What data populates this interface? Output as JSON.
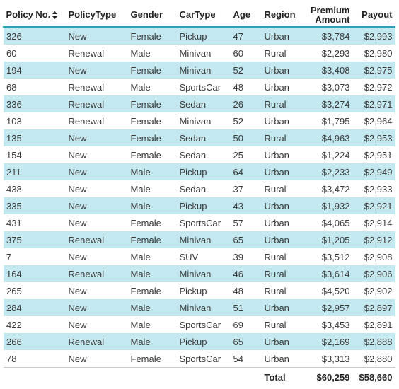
{
  "table": {
    "columns": [
      {
        "key": "policy_no",
        "label": "Policy No.",
        "numeric": false,
        "sortable": true
      },
      {
        "key": "policy_type",
        "label": "PolicyType",
        "numeric": false
      },
      {
        "key": "gender",
        "label": "Gender",
        "numeric": false
      },
      {
        "key": "car_type",
        "label": "CarType",
        "numeric": false
      },
      {
        "key": "age",
        "label": "Age",
        "numeric": false
      },
      {
        "key": "region",
        "label": "Region",
        "numeric": false
      },
      {
        "key": "premium_amount",
        "label_line1": "Premium",
        "label_line2": "Amount",
        "numeric": true
      },
      {
        "key": "payout",
        "label": "Payout",
        "numeric": true
      }
    ],
    "rows": [
      [
        "326",
        "New",
        "Female",
        "Pickup",
        "47",
        "Urban",
        "$3,784",
        "$2,993"
      ],
      [
        "60",
        "Renewal",
        "Male",
        "Minivan",
        "60",
        "Rural",
        "$2,293",
        "$2,980"
      ],
      [
        "194",
        "New",
        "Female",
        "Minivan",
        "52",
        "Urban",
        "$3,408",
        "$2,975"
      ],
      [
        "68",
        "Renewal",
        "Male",
        "SportsCar",
        "48",
        "Urban",
        "$3,073",
        "$2,972"
      ],
      [
        "336",
        "Renewal",
        "Female",
        "Sedan",
        "26",
        "Rural",
        "$3,274",
        "$2,971"
      ],
      [
        "103",
        "Renewal",
        "Female",
        "Minivan",
        "52",
        "Urban",
        "$1,795",
        "$2,964"
      ],
      [
        "135",
        "New",
        "Female",
        "Sedan",
        "50",
        "Rural",
        "$4,963",
        "$2,953"
      ],
      [
        "154",
        "New",
        "Female",
        "Sedan",
        "25",
        "Urban",
        "$1,224",
        "$2,951"
      ],
      [
        "211",
        "New",
        "Male",
        "Pickup",
        "64",
        "Urban",
        "$2,233",
        "$2,949"
      ],
      [
        "438",
        "New",
        "Male",
        "Sedan",
        "37",
        "Rural",
        "$3,472",
        "$2,933"
      ],
      [
        "335",
        "New",
        "Male",
        "Pickup",
        "43",
        "Urban",
        "$1,932",
        "$2,921"
      ],
      [
        "431",
        "New",
        "Female",
        "SportsCar",
        "57",
        "Urban",
        "$4,065",
        "$2,914"
      ],
      [
        "375",
        "Renewal",
        "Female",
        "Minivan",
        "65",
        "Urban",
        "$1,205",
        "$2,912"
      ],
      [
        "7",
        "New",
        "Male",
        "SUV",
        "39",
        "Rural",
        "$3,512",
        "$2,908"
      ],
      [
        "164",
        "Renewal",
        "Male",
        "Minivan",
        "46",
        "Rural",
        "$3,614",
        "$2,906"
      ],
      [
        "265",
        "New",
        "Female",
        "Pickup",
        "48",
        "Rural",
        "$4,520",
        "$2,902"
      ],
      [
        "284",
        "New",
        "Male",
        "Minivan",
        "51",
        "Urban",
        "$2,957",
        "$2,897"
      ],
      [
        "422",
        "New",
        "Male",
        "SportsCar",
        "69",
        "Rural",
        "$3,453",
        "$2,891"
      ],
      [
        "266",
        "Renewal",
        "Male",
        "Pickup",
        "65",
        "Urban",
        "$2,169",
        "$2,888"
      ],
      [
        "78",
        "New",
        "Female",
        "SportsCar",
        "54",
        "Urban",
        "$3,313",
        "$2,880"
      ]
    ],
    "total": {
      "label": "Total",
      "premium_amount": "$60,259",
      "payout": "$58,660"
    }
  },
  "colors": {
    "header_rule": "#2ba2b7",
    "band_row": "#c4e8ef",
    "plain_row": "#ffffff"
  },
  "icons": {
    "sort": "sort-updown-icon"
  }
}
